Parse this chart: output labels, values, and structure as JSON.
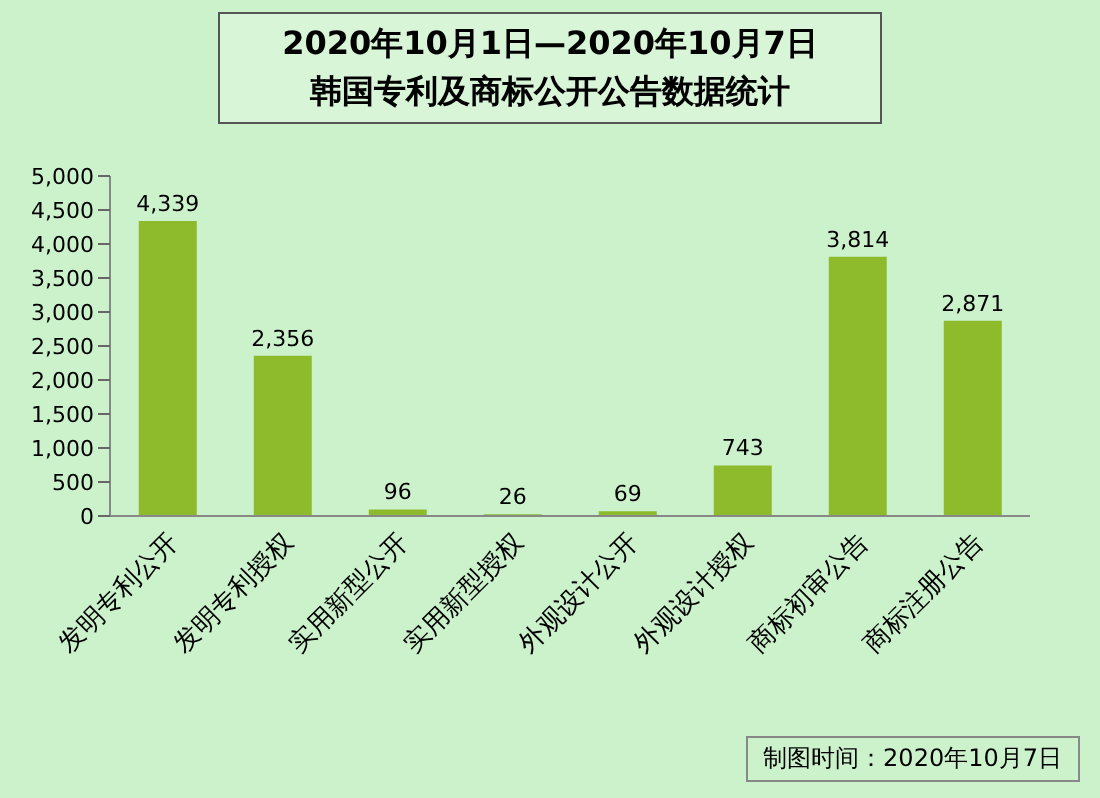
{
  "chart_data": {
    "type": "bar",
    "title": "2020年10月1日—2020年10月7日",
    "subtitle": "韩国专利及商标公开公告数据统计",
    "categories": [
      "发明专利公开",
      "发明专利授权",
      "实用新型公开",
      "实用新型授权",
      "外观设计公开",
      "外观设计授权",
      "商标初审公告",
      "商标注册公告"
    ],
    "values": [
      4339,
      2356,
      96,
      26,
      69,
      743,
      3814,
      2871
    ],
    "color": "#8dbb2c",
    "value_labels": [
      "4,339",
      "2,356",
      "96",
      "26",
      "69",
      "743",
      "3,814",
      "2,871"
    ],
    "ylim": [
      0,
      5000
    ],
    "yticks": [
      0,
      500,
      {
        "value": 1000,
        "label": "1,000"
      },
      {
        "value": 1500,
        "label": "1,500"
      },
      {
        "value": 2000,
        "label": "2,000"
      },
      {
        "value": 2500,
        "label": "2,500"
      },
      {
        "value": 3000,
        "label": "3,000"
      },
      {
        "value": 3500,
        "label": "3,500"
      },
      {
        "value": 4000,
        "label": "4,000"
      },
      {
        "value": 4500,
        "label": "4,500"
      },
      {
        "value": 5000,
        "label": "5,000"
      }
    ],
    "grid": false,
    "annotations": [
      "制图时间：2020年10月7日"
    ]
  }
}
